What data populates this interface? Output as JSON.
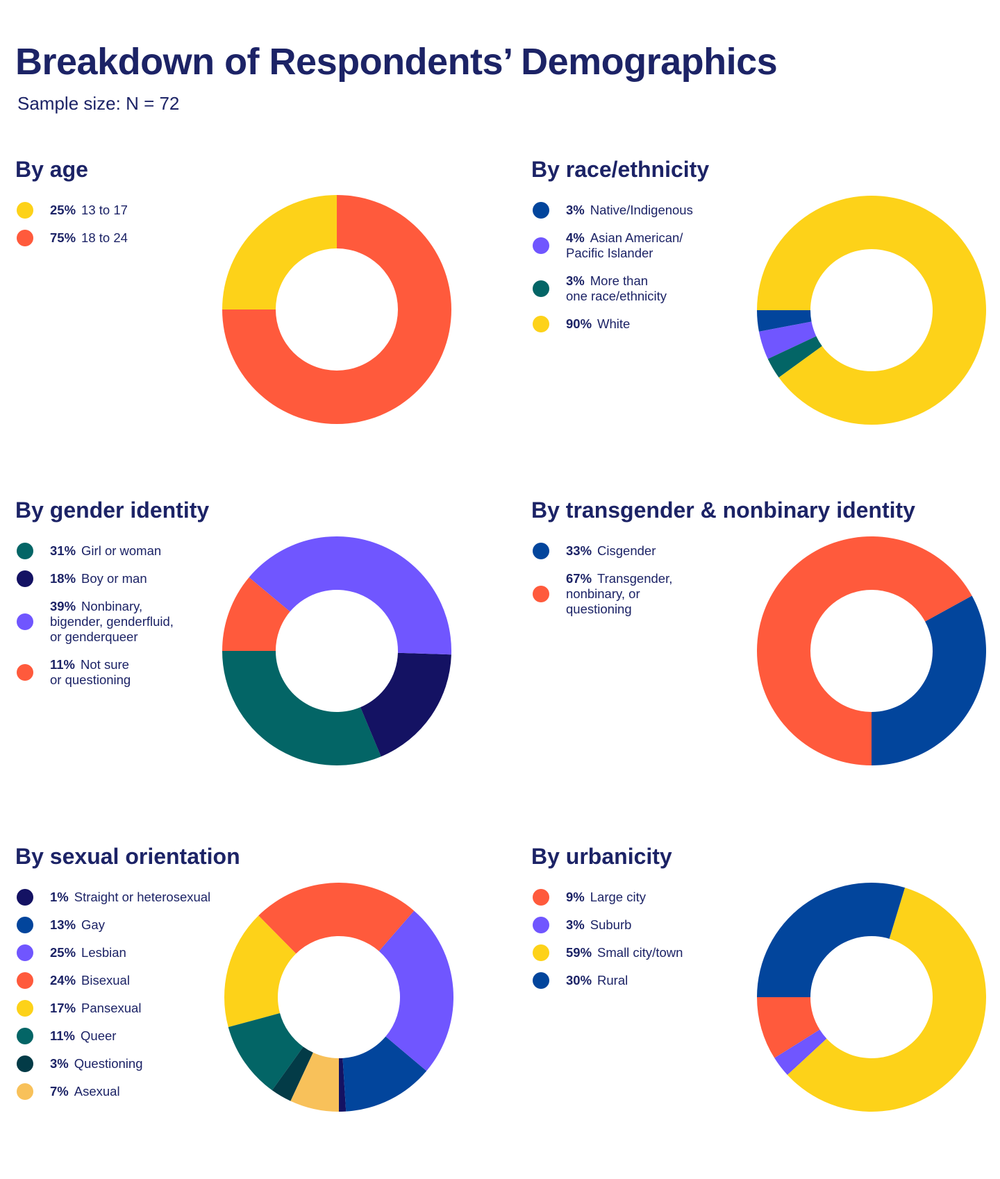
{
  "page": {
    "title": "Breakdown of Respondents’ Demographics",
    "subtitle": "Sample size: N = 72"
  },
  "chart_data": [
    {
      "type": "pie",
      "title": "By age",
      "donut": true,
      "categories": [
        "13 to 17",
        "18 to 24"
      ],
      "values": [
        25,
        75
      ],
      "labels": [
        "25%",
        "75%"
      ],
      "colors": [
        "#fdd219",
        "#ff5a3c"
      ],
      "legend_position": "left"
    },
    {
      "type": "pie",
      "title": "By race/ethnicity",
      "donut": true,
      "categories": [
        "Native/Indigenous",
        "Asian American/\nPacific Islander",
        "More than\none race/ethnicity",
        "White"
      ],
      "values": [
        3,
        4,
        3,
        90
      ],
      "labels": [
        "3%",
        "4%",
        "3%",
        "90%"
      ],
      "colors": [
        "#02459c",
        "#7056ff",
        "#036566",
        "#fdd219"
      ],
      "legend_position": "left"
    },
    {
      "type": "pie",
      "title": "By gender identity",
      "donut": true,
      "categories": [
        "Girl or woman",
        "Boy or man",
        "Nonbinary,\nbigender, genderfluid,\nor genderqueer",
        "Not sure\nor questioning"
      ],
      "values": [
        31,
        18,
        39,
        11
      ],
      "labels": [
        "31%",
        "18%",
        "39%",
        "11%"
      ],
      "colors": [
        "#036566",
        "#141263",
        "#7056ff",
        "#ff5a3c"
      ],
      "legend_position": "left"
    },
    {
      "type": "pie",
      "title": "By transgender & nonbinary identity",
      "donut": true,
      "categories": [
        "Cisgender",
        "Transgender,\nnonbinary, or\nquestioning"
      ],
      "values": [
        33,
        67
      ],
      "labels": [
        "33%",
        "67%"
      ],
      "colors": [
        "#02459c",
        "#ff5a3c"
      ],
      "legend_position": "left"
    },
    {
      "type": "pie",
      "title": "By sexual orientation",
      "donut": true,
      "categories": [
        "Straight or heterosexual",
        "Gay",
        "Lesbian",
        "Bisexual",
        "Pansexual",
        "Queer",
        "Questioning",
        "Asexual"
      ],
      "values": [
        1,
        13,
        25,
        24,
        17,
        11,
        3,
        7
      ],
      "labels": [
        "1%",
        "13%",
        "25%",
        "24%",
        "17%",
        "11%",
        "3%",
        "7%"
      ],
      "colors": [
        "#141263",
        "#02459c",
        "#7056ff",
        "#ff5a3c",
        "#fdd219",
        "#036566",
        "#033b47",
        "#f8c15a"
      ],
      "legend_position": "left"
    },
    {
      "type": "pie",
      "title": "By urbanicity",
      "donut": true,
      "categories": [
        "Large city",
        "Suburb",
        "Small city/town",
        "Rural"
      ],
      "values": [
        9,
        3,
        59,
        30
      ],
      "labels": [
        "9%",
        "3%",
        "59%",
        "30%"
      ],
      "colors": [
        "#ff5a3c",
        "#7056ff",
        "#fdd219",
        "#02459c"
      ],
      "legend_position": "left"
    }
  ]
}
